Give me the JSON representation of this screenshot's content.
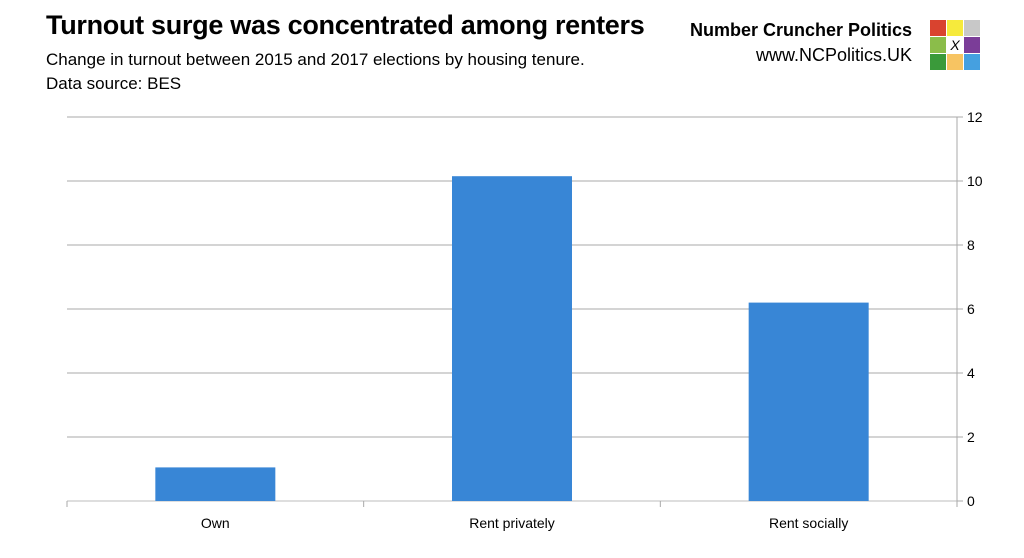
{
  "header": {
    "title": "Turnout surge was concentrated among renters",
    "subtitle_line1": "Change in turnout between 2015 and 2017 elections by housing tenure.",
    "subtitle_line2": "Data source: BES",
    "brand": "Number Cruncher Politics",
    "url": "www.NCPolitics.UK",
    "logo_mark": "X"
  },
  "logo_colors": [
    "#d9432f",
    "#f6ea3c",
    "#c8c8c8",
    "#8bbd4a",
    "#ffffff",
    "#7b3d98",
    "#3a9a3a",
    "#f7c462",
    "#45a0e0"
  ],
  "chart_data": {
    "type": "bar",
    "title": "Turnout surge was concentrated among renters",
    "categories": [
      "Own",
      "Rent privately",
      "Rent socially"
    ],
    "values": [
      1.05,
      10.15,
      6.2
    ],
    "ylim": [
      0,
      12
    ],
    "yticks": [
      0,
      2,
      4,
      6,
      8,
      10,
      12
    ],
    "xlabel": "",
    "ylabel": "",
    "y_axis_side": "right",
    "grid": true,
    "bar_color": "#3886d6"
  }
}
